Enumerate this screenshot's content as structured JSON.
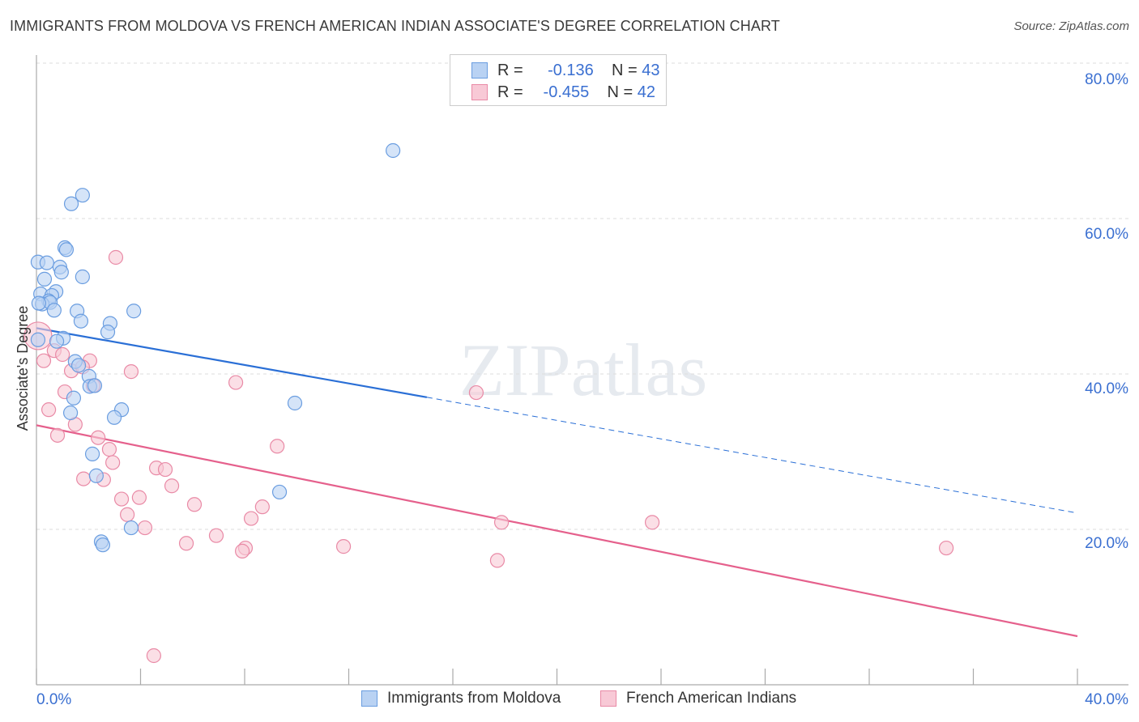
{
  "title": "IMMIGRANTS FROM MOLDOVA VS FRENCH AMERICAN INDIAN ASSOCIATE'S DEGREE CORRELATION CHART",
  "source": "Source: ZipAtlas.com",
  "watermark": "ZIPatlas",
  "legend": {
    "rows": [
      {
        "r_label": "R =",
        "r_value": "-0.136",
        "n_label": "N =",
        "n_value": "43"
      },
      {
        "r_label": "R =",
        "r_value": "-0.455",
        "n_label": "N =",
        "n_value": "42"
      }
    ]
  },
  "chart_data": {
    "type": "scatter",
    "title": "IMMIGRANTS FROM MOLDOVA VS FRENCH AMERICAN INDIAN ASSOCIATE'S DEGREE CORRELATION CHART",
    "xlabel": "",
    "ylabel": "Associate's Degree",
    "xlim": [
      0,
      40
    ],
    "ylim": [
      0,
      80
    ],
    "x_tick_labels": [
      "0.0%",
      "40.0%"
    ],
    "y_ticks": [
      20,
      40,
      60,
      80
    ],
    "y_tick_labels": [
      "20.0%",
      "40.0%",
      "60.0%",
      "80.0%"
    ],
    "grid": true,
    "legend_position": "top-center",
    "series": [
      {
        "name": "Immigrants from Moldova",
        "color": "#6a9de0",
        "fill": "#b9d2f3",
        "line_color": "#2a6fd6",
        "trend": {
          "x0": 0,
          "y0": 45.9,
          "x_solid_end": 15.0,
          "y_solid_end": 37.0,
          "x1": 40,
          "y1": 22.1
        },
        "points": [
          [
            13.7,
            68.75
          ],
          [
            1.77,
            63.0
          ],
          [
            1.34,
            61.9
          ],
          [
            1.09,
            56.25
          ],
          [
            1.15,
            56.0
          ],
          [
            0.06,
            54.4
          ],
          [
            0.4,
            54.3
          ],
          [
            0.9,
            53.75
          ],
          [
            0.96,
            53.1
          ],
          [
            1.77,
            52.5
          ],
          [
            0.31,
            52.2
          ],
          [
            0.16,
            50.3
          ],
          [
            0.75,
            50.6
          ],
          [
            0.59,
            50.1
          ],
          [
            0.47,
            49.4
          ],
          [
            0.22,
            49.0
          ],
          [
            0.53,
            49.2
          ],
          [
            0.68,
            48.2
          ],
          [
            1.56,
            48.1
          ],
          [
            3.74,
            48.1
          ],
          [
            1.71,
            46.8
          ],
          [
            2.83,
            46.5
          ],
          [
            2.74,
            45.4
          ],
          [
            1.03,
            44.6
          ],
          [
            0.06,
            44.4
          ],
          [
            0.78,
            44.2
          ],
          [
            1.49,
            41.6
          ],
          [
            1.62,
            41.1
          ],
          [
            2.02,
            39.7
          ],
          [
            2.05,
            38.4
          ],
          [
            2.24,
            38.5
          ],
          [
            3.27,
            35.4
          ],
          [
            1.43,
            36.9
          ],
          [
            1.31,
            35.0
          ],
          [
            2.99,
            34.4
          ],
          [
            9.93,
            36.25
          ],
          [
            2.15,
            29.7
          ],
          [
            2.3,
            26.9
          ],
          [
            9.34,
            24.8
          ],
          [
            3.64,
            20.2
          ],
          [
            2.49,
            18.4
          ],
          [
            2.55,
            18.0
          ],
          [
            0.09,
            49.1
          ]
        ]
      },
      {
        "name": "French American Indians",
        "color": "#e98aa6",
        "fill": "#f8c9d6",
        "line_color": "#e5608c",
        "trend": {
          "x0": 0,
          "y0": 33.4,
          "x1": 40,
          "y1": 6.25
        },
        "points": [
          [
            3.05,
            55.0
          ],
          [
            0.06,
            44.9
          ],
          [
            0.68,
            43.0
          ],
          [
            1.0,
            42.5
          ],
          [
            0.28,
            41.7
          ],
          [
            2.05,
            41.7
          ],
          [
            1.34,
            40.4
          ],
          [
            3.64,
            40.3
          ],
          [
            1.09,
            37.7
          ],
          [
            7.66,
            38.9
          ],
          [
            16.9,
            37.6
          ],
          [
            0.47,
            35.4
          ],
          [
            1.49,
            33.5
          ],
          [
            0.81,
            32.1
          ],
          [
            2.37,
            31.8
          ],
          [
            2.8,
            30.3
          ],
          [
            9.25,
            30.7
          ],
          [
            2.93,
            28.6
          ],
          [
            4.61,
            27.9
          ],
          [
            4.95,
            27.7
          ],
          [
            1.81,
            26.5
          ],
          [
            2.58,
            26.4
          ],
          [
            5.2,
            25.6
          ],
          [
            3.27,
            23.9
          ],
          [
            3.95,
            24.1
          ],
          [
            3.49,
            21.9
          ],
          [
            6.07,
            23.2
          ],
          [
            8.68,
            22.9
          ],
          [
            8.25,
            21.4
          ],
          [
            4.17,
            20.2
          ],
          [
            17.87,
            20.9
          ],
          [
            23.66,
            20.9
          ],
          [
            6.91,
            19.2
          ],
          [
            5.76,
            18.2
          ],
          [
            8.03,
            17.6
          ],
          [
            7.91,
            17.2
          ],
          [
            11.8,
            17.8
          ],
          [
            34.96,
            17.6
          ],
          [
            17.71,
            16.0
          ],
          [
            4.51,
            3.75
          ],
          [
            2.18,
            38.5
          ],
          [
            1.77,
            40.9
          ]
        ]
      }
    ]
  }
}
